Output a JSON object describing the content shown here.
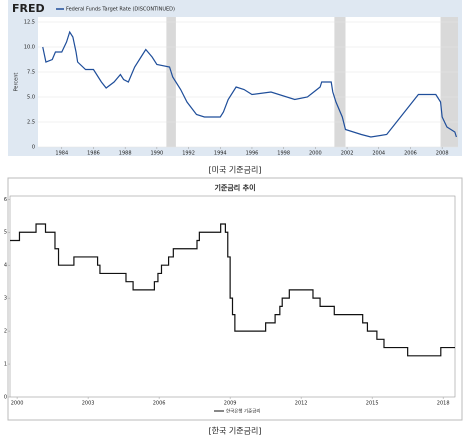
{
  "chart_data": [
    {
      "type": "line",
      "logo": "FRED",
      "series": [
        {
          "name": "Federal Funds Target Rate (DISCONTINUED)",
          "color": "#1f4e9a",
          "x": [
            1982.8,
            1983.0,
            1983.4,
            1983.6,
            1984.0,
            1984.3,
            1984.5,
            1984.7,
            1984.9,
            1985.0,
            1985.5,
            1986.0,
            1986.5,
            1986.8,
            1987.3,
            1987.7,
            1987.9,
            1988.2,
            1988.6,
            1989.0,
            1989.3,
            1989.7,
            1990.0,
            1990.8,
            1991.0,
            1991.5,
            1991.9,
            1992.5,
            1993.0,
            1994.0,
            1994.2,
            1994.5,
            1995.0,
            1995.5,
            1996.0,
            1997.2,
            1998.7,
            1999.5,
            1999.9,
            2000.3,
            2000.4,
            2001.0,
            2001.1,
            2001.3,
            2001.7,
            2001.9,
            2002.9,
            2003.5,
            2004.5,
            2005.0,
            2005.5,
            2006.0,
            2006.5,
            2007.6,
            2007.9,
            2008.0,
            2008.3,
            2008.8,
            2008.9
          ],
          "values": [
            10.0,
            8.5,
            8.75,
            9.5,
            9.5,
            10.5,
            11.5,
            11.0,
            9.5,
            8.5,
            7.75,
            7.75,
            6.5,
            5.9,
            6.5,
            7.25,
            6.75,
            6.5,
            8.0,
            9.0,
            9.75,
            9.0,
            8.25,
            8.0,
            7.0,
            5.75,
            4.5,
            3.25,
            3.0,
            3.0,
            3.5,
            4.75,
            6.0,
            5.75,
            5.25,
            5.5,
            4.75,
            5.0,
            5.5,
            6.0,
            6.5,
            6.5,
            5.5,
            4.5,
            3.0,
            1.75,
            1.25,
            1.0,
            1.25,
            2.25,
            3.25,
            4.25,
            5.25,
            5.25,
            4.5,
            3.0,
            2.0,
            1.5,
            1.0
          ]
        }
      ],
      "recessions": [
        [
          1990.6,
          1991.2
        ],
        [
          2001.2,
          2001.9
        ],
        [
          2007.9,
          2009.0
        ]
      ],
      "y_label": "Percent",
      "xlim": [
        1982.5,
        2009.0
      ],
      "xticks": [
        1984,
        1986,
        1988,
        1990,
        1992,
        1994,
        1996,
        1998,
        2000,
        2002,
        2004,
        2006,
        2008
      ],
      "ylim": [
        0,
        13
      ],
      "yticks": [
        0,
        2.5,
        {
          "value": 5,
          "label": "5.0"
        },
        {
          "value": 7.5,
          "label": "7.5"
        },
        {
          "value": 10,
          "label": "10.0"
        },
        {
          "value": 12.5,
          "label": "12.5"
        }
      ],
      "grid": true,
      "caption": "[미국 기준금리]"
    },
    {
      "type": "step",
      "title": "기준금리 추이",
      "series": [
        {
          "name": "한국은행 기준금리",
          "color": "#111",
          "x": [
            1999.7,
            2000.1,
            2000.8,
            2001.2,
            2001.6,
            2001.75,
            2002.4,
            2003.4,
            2003.5,
            2004.6,
            2004.9,
            2005.8,
            2005.95,
            2006.1,
            2006.4,
            2006.6,
            2007.6,
            2007.7,
            2008.6,
            2008.8,
            2008.9,
            2009.0,
            2009.1,
            2009.2,
            2010.5,
            2010.9,
            2011.1,
            2011.2,
            2011.5,
            2012.5,
            2012.8,
            2013.4,
            2014.6,
            2014.8,
            2015.2,
            2015.5,
            2016.5,
            2017.9,
            2018.5
          ],
          "values": [
            4.75,
            5.0,
            5.25,
            5.0,
            4.5,
            4.0,
            4.25,
            4.0,
            3.75,
            3.5,
            3.25,
            3.5,
            3.75,
            4.0,
            4.25,
            4.5,
            4.75,
            5.0,
            5.25,
            5.0,
            4.25,
            3.0,
            2.5,
            2.0,
            2.25,
            2.5,
            2.75,
            3.0,
            3.25,
            3.0,
            2.75,
            2.5,
            2.25,
            2.0,
            1.75,
            1.5,
            1.25,
            1.5,
            1.5
          ]
        }
      ],
      "xlim": [
        1999.7,
        2018.5
      ],
      "xticks": [
        2000,
        2003,
        2006,
        2009,
        2012,
        2015,
        2018
      ],
      "ylim": [
        0,
        6.1
      ],
      "yticks": [
        0,
        1,
        2,
        3,
        4,
        5,
        6
      ],
      "grid": false,
      "caption": "[한국 기준금리]"
    }
  ]
}
